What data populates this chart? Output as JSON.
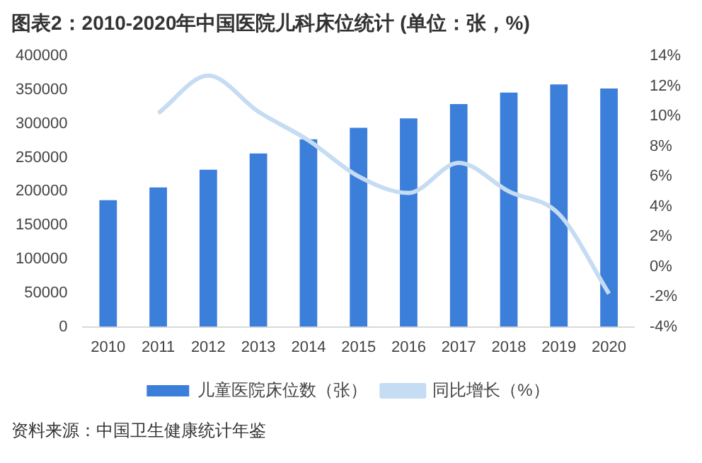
{
  "chart_data": {
    "type": "bar",
    "title": "图表2：2010-2020年中国医院儿科床位统计 (单位：张，%)",
    "categories": [
      "2010",
      "2011",
      "2012",
      "2013",
      "2014",
      "2015",
      "2016",
      "2017",
      "2018",
      "2019",
      "2020"
    ],
    "series": [
      {
        "name": "儿童医院床位数（张）",
        "color": "#3c7fdb",
        "values": [
          187000,
          206000,
          232000,
          256000,
          277000,
          294000,
          308000,
          329000,
          346000,
          358000,
          352000
        ]
      },
      {
        "name": "同比增长（%）",
        "type": "line",
        "axis": "y2",
        "color": "#c5dcf2",
        "values": [
          null,
          10.2,
          12.7,
          10.3,
          8.4,
          6.0,
          4.9,
          6.9,
          5.0,
          3.5,
          -1.8
        ]
      }
    ],
    "ylim": [
      0,
      400000
    ],
    "yticks": [
      0,
      50000,
      100000,
      150000,
      200000,
      250000,
      300000,
      350000,
      400000
    ],
    "y2lim": [
      -4,
      14
    ],
    "y2ticks": [
      {
        "value": -4,
        "label": "-4%"
      },
      {
        "value": -2,
        "label": "-2%"
      },
      {
        "value": 0,
        "label": "0%"
      },
      {
        "value": 2,
        "label": "2%"
      },
      {
        "value": 4,
        "label": "4%"
      },
      {
        "value": 6,
        "label": "6%"
      },
      {
        "value": 8,
        "label": "8%"
      },
      {
        "value": 10,
        "label": "10%"
      },
      {
        "value": 12,
        "label": "12%"
      },
      {
        "value": 14,
        "label": "14%"
      }
    ],
    "grid": false,
    "legend": "bottom",
    "marker": "none",
    "annotations": [
      "资料来源：中国卫生健康统计年鉴"
    ]
  }
}
